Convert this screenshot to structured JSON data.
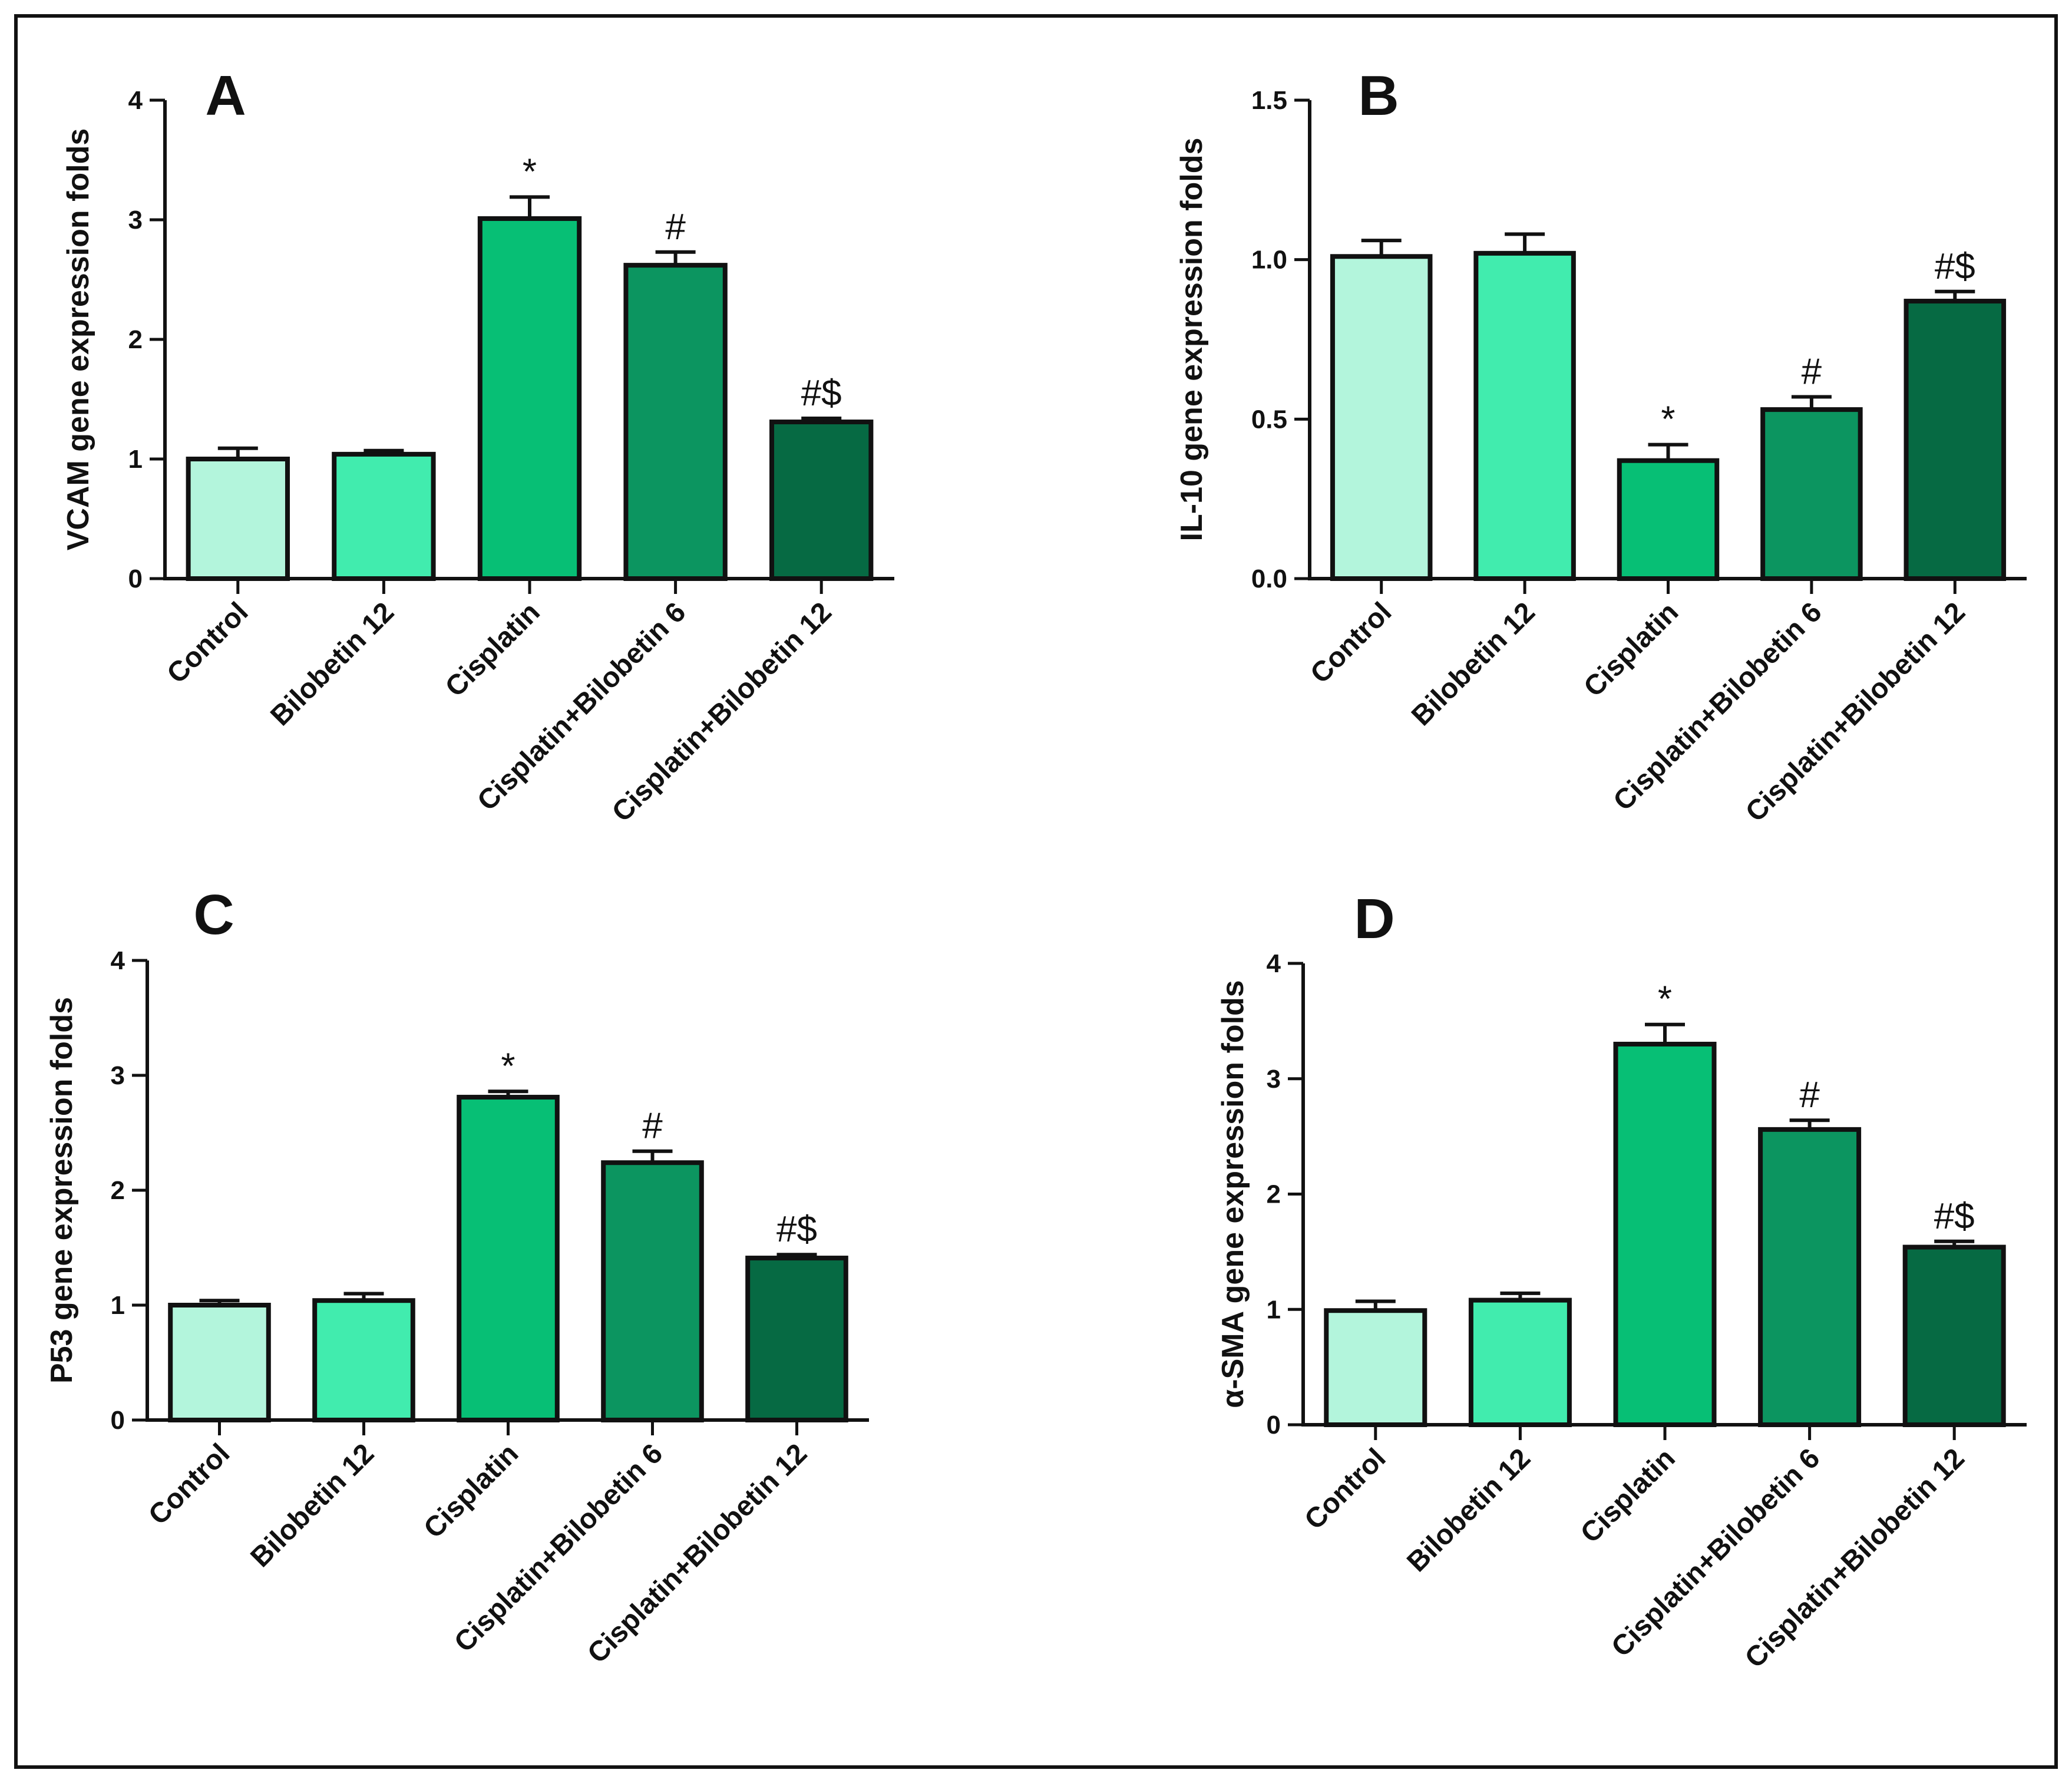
{
  "chart_data": [
    {
      "type": "bar",
      "panel_label": "A",
      "ylabel": "VCAM gene expression folds",
      "categories": [
        "Control",
        "Bilobetin 12",
        "Cisplatin",
        "Cisplatin+Bilobetin 6",
        "Cisplatin+Bilobetin 12"
      ],
      "values": [
        1.0,
        1.04,
        3.01,
        2.62,
        1.31
      ],
      "errors": [
        0.09,
        0.03,
        0.18,
        0.11,
        0.03
      ],
      "significance": [
        "",
        "",
        "*",
        "#",
        "#$"
      ],
      "ylim": [
        0,
        4
      ],
      "yticks": [
        "0",
        "1",
        "2",
        "3",
        "4"
      ],
      "colors": [
        "#b3f5dc",
        "#41ecae",
        "#07bf75",
        "#0c9560",
        "#066a43"
      ]
    },
    {
      "type": "bar",
      "panel_label": "B",
      "ylabel": "IL-10 gene expression folds",
      "categories": [
        "Control",
        "Bilobetin 12",
        "Cisplatin",
        "Cisplatin+Bilobetin 6",
        "Cisplatin+Bilobetin 12"
      ],
      "values": [
        1.01,
        1.02,
        0.37,
        0.53,
        0.87
      ],
      "errors": [
        0.05,
        0.06,
        0.05,
        0.04,
        0.03
      ],
      "significance": [
        "",
        "",
        "*",
        "#",
        "#$"
      ],
      "ylim": [
        0,
        1.5
      ],
      "yticks": [
        "0.0",
        "0.5",
        "1.0",
        "1.5"
      ],
      "colors": [
        "#b3f5dc",
        "#41ecae",
        "#07bf75",
        "#0c9560",
        "#066a43"
      ]
    },
    {
      "type": "bar",
      "panel_label": "C",
      "ylabel": "P53 gene expression folds",
      "categories": [
        "Control",
        "Bilobetin 12",
        "Cisplatin",
        "Cisplatin+Bilobetin 6",
        "Cisplatin+Bilobetin 12"
      ],
      "values": [
        1.0,
        1.04,
        2.81,
        2.24,
        1.41
      ],
      "errors": [
        0.04,
        0.06,
        0.05,
        0.1,
        0.03
      ],
      "significance": [
        "",
        "",
        "*",
        "#",
        "#$"
      ],
      "ylim": [
        0,
        4
      ],
      "yticks": [
        "0",
        "1",
        "2",
        "3",
        "4"
      ],
      "colors": [
        "#b3f5dc",
        "#41ecae",
        "#07bf75",
        "#0c9560",
        "#066a43"
      ]
    },
    {
      "type": "bar",
      "panel_label": "D",
      "ylabel": "α-SMA gene expression folds",
      "categories": [
        "Control",
        "Bilobetin 12",
        "Cisplatin",
        "Cisplatin+Bilobetin 6",
        "Cisplatin+Bilobetin 12"
      ],
      "values": [
        0.99,
        1.08,
        3.3,
        2.56,
        1.54
      ],
      "errors": [
        0.08,
        0.06,
        0.17,
        0.08,
        0.05
      ],
      "significance": [
        "",
        "",
        "*",
        "#",
        "#$"
      ],
      "ylim": [
        0,
        4
      ],
      "yticks": [
        "0",
        "1",
        "2",
        "3",
        "4"
      ],
      "colors": [
        "#b3f5dc",
        "#41ecae",
        "#07bf75",
        "#0c9560",
        "#066a43"
      ]
    }
  ]
}
